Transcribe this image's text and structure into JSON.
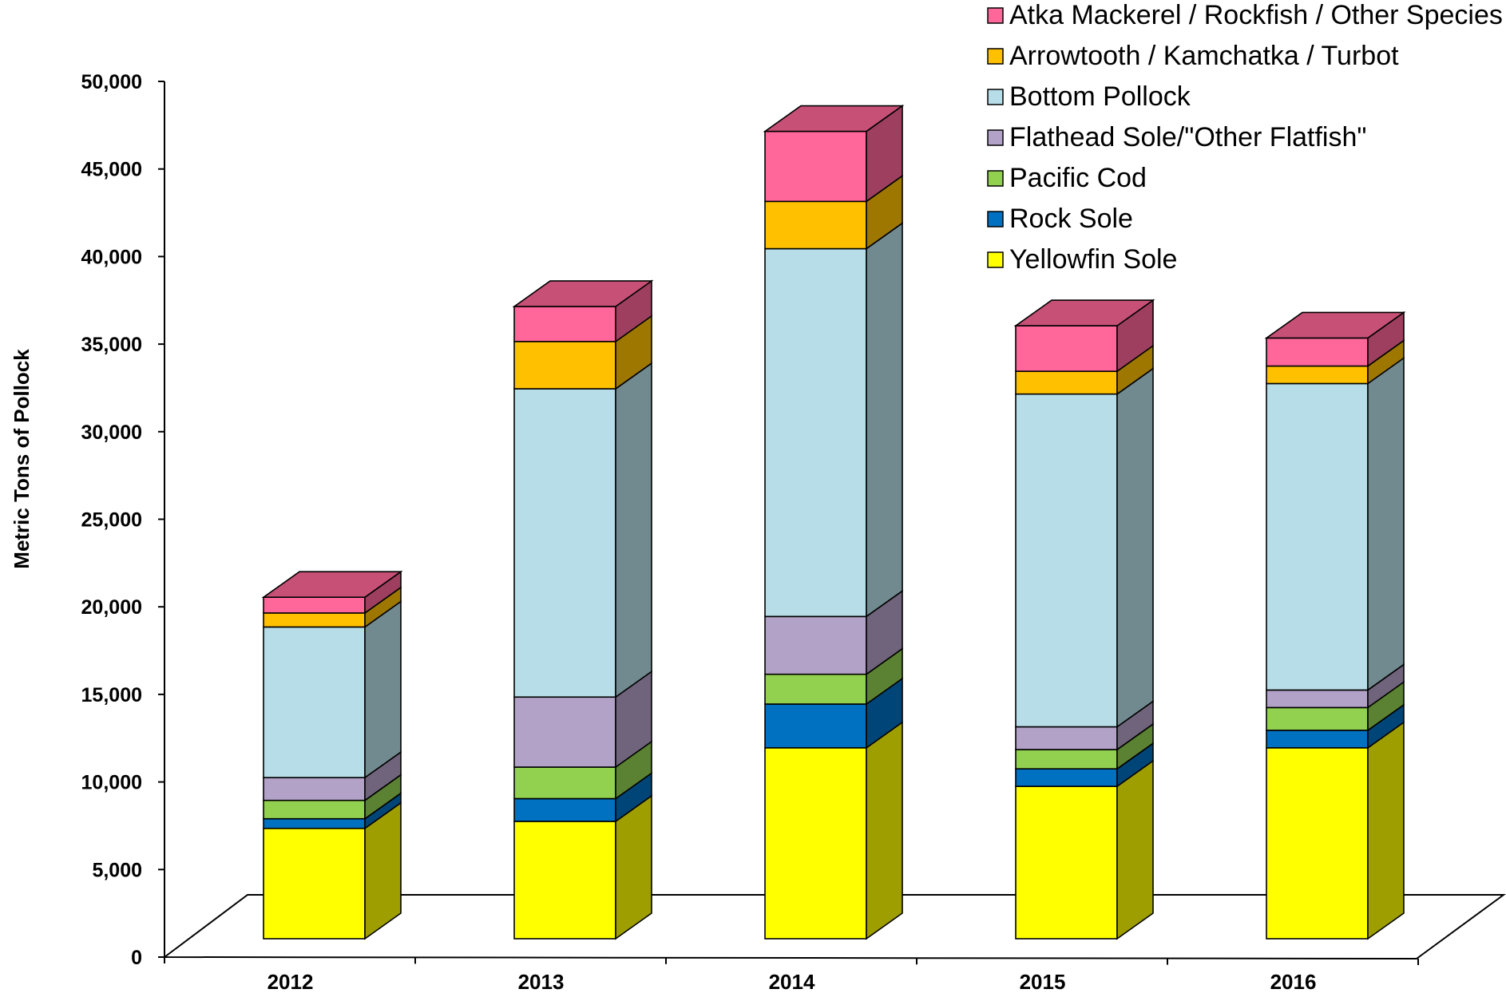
{
  "chart_data": {
    "type": "bar",
    "stacked": true,
    "style": "3d",
    "categories": [
      "2012",
      "2013",
      "2014",
      "2015",
      "2016"
    ],
    "ylabel": "Metric Tons of Pollock",
    "xlabel": "",
    "ylim": [
      0,
      50000
    ],
    "yticks": [
      0,
      5000,
      10000,
      15000,
      20000,
      25000,
      30000,
      35000,
      40000,
      45000,
      50000
    ],
    "ytick_labels": [
      "0",
      "5,000",
      "10,000",
      "15,000",
      "20,000",
      "25,000",
      "30,000",
      "35,000",
      "40,000",
      "45,000",
      "50,000"
    ],
    "grid": false,
    "legend_position": "top-right",
    "series": [
      {
        "name": "Yellowfin Sole",
        "color": "#FFFF00",
        "values": [
          6300,
          6700,
          10900,
          8700,
          10900
        ]
      },
      {
        "name": "Rock Sole",
        "color": "#0070C0",
        "values": [
          550,
          1300,
          2500,
          1000,
          1000
        ]
      },
      {
        "name": "Pacific Cod",
        "color": "#92D050",
        "values": [
          1050,
          1800,
          1700,
          1100,
          1300
        ]
      },
      {
        "name": "Flathead Sole/\"Other Flatfish\"",
        "color": "#B3A2C7",
        "values": [
          1300,
          4000,
          3300,
          1300,
          1000
        ]
      },
      {
        "name": "Bottom Pollock",
        "color": "#B7DEE8",
        "values": [
          8600,
          17600,
          21000,
          19000,
          17500
        ]
      },
      {
        "name": "Arrowtooth / Kamchatka / Turbot",
        "color": "#FFC000",
        "values": [
          800,
          2700,
          2700,
          1300,
          1000
        ]
      },
      {
        "name": "Atka Mackerel / Rockfish / Other Species",
        "color": "#FF6699",
        "values": [
          900,
          2000,
          4000,
          2600,
          1600
        ]
      }
    ]
  }
}
